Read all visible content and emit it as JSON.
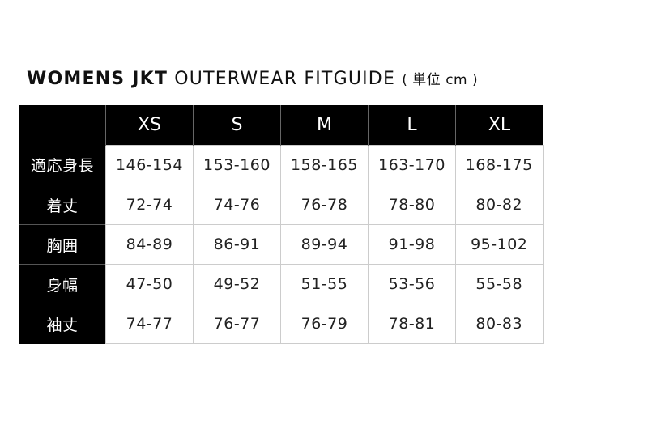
{
  "title": {
    "bold": "WOMENS JKT",
    "light": "OUTERWEAR FITGUIDE",
    "unit": "( 単位 cm )"
  },
  "table": {
    "sizes": [
      "XS",
      "S",
      "M",
      "L",
      "XL"
    ],
    "rows": [
      {
        "label": "適応身長",
        "values": [
          "146-154",
          "153-160",
          "158-165",
          "163-170",
          "168-175"
        ]
      },
      {
        "label": "着丈",
        "values": [
          "72-74",
          "74-76",
          "76-78",
          "78-80",
          "80-82"
        ]
      },
      {
        "label": "胸囲",
        "values": [
          "84-89",
          "86-91",
          "89-94",
          "91-98",
          "95-102"
        ]
      },
      {
        "label": "身幅",
        "values": [
          "47-50",
          "49-52",
          "51-55",
          "53-56",
          "55-58"
        ]
      },
      {
        "label": "袖丈",
        "values": [
          "74-77",
          "76-77",
          "76-79",
          "78-81",
          "80-83"
        ]
      }
    ]
  }
}
